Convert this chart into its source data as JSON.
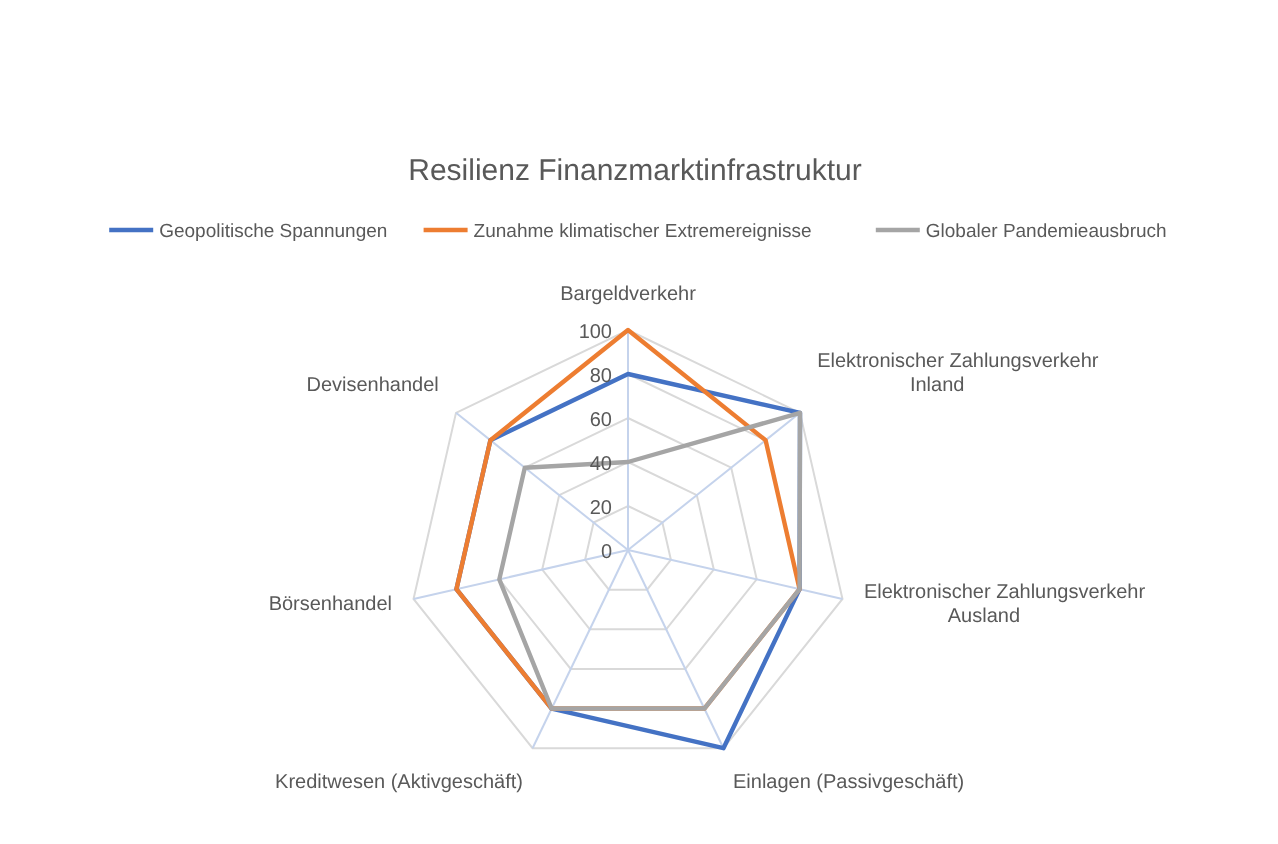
{
  "chart_data": {
    "type": "radar",
    "title": "Resilienz Finanzmarktinfrastruktur",
    "categories": [
      "Bargeldverkehr",
      "Elektronischer Zahlungsverkehr Inland",
      "Elektronischer Zahlungsverkehr Ausland",
      "Einlagen (Passivgeschäft)",
      "Kreditwesen (Aktivgeschäft)",
      "Börsenhandel",
      "Devisenhandel"
    ],
    "series": [
      {
        "name": "Geopolitische Spannungen",
        "color": "#4472c4",
        "values": [
          80,
          100,
          80,
          100,
          80,
          80,
          80
        ]
      },
      {
        "name": "Zunahme klimatischer Extremereignisse",
        "color": "#ed7d31",
        "values": [
          100,
          80,
          80,
          80,
          80,
          80,
          80
        ]
      },
      {
        "name": "Globaler Pandemieausbruch",
        "color": "#a5a5a5",
        "values": [
          40,
          100,
          80,
          80,
          80,
          60,
          60
        ]
      }
    ],
    "ylim": [
      0,
      100
    ],
    "yticks": [
      0,
      20,
      40,
      60,
      80,
      100
    ],
    "grid": true,
    "legend": "top",
    "marker": "none",
    "line_style": "solid"
  }
}
